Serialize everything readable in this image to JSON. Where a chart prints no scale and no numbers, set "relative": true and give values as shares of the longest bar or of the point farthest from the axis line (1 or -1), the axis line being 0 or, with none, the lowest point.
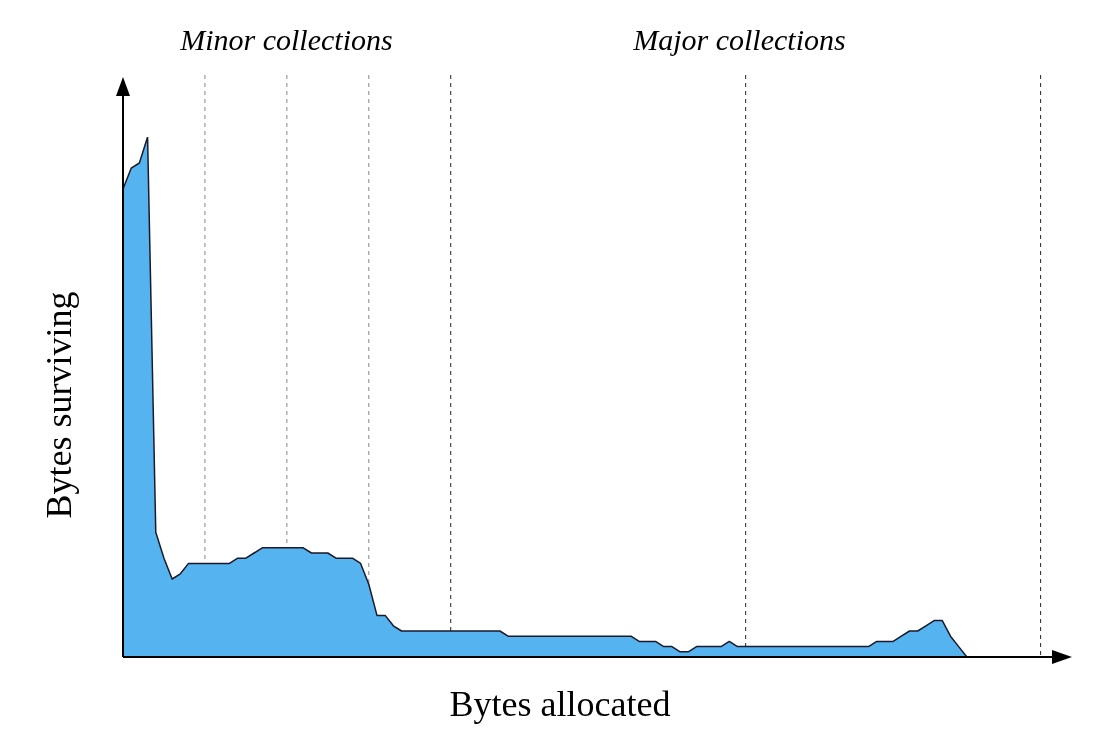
{
  "chart_data": {
    "type": "area",
    "relative": true,
    "xlabel": "Bytes allocated",
    "ylabel": "Bytes surviving",
    "annotations": [
      "Minor collections",
      "Major collections"
    ],
    "categories": [
      null,
      null,
      null,
      null,
      null,
      null,
      null,
      null,
      null,
      null,
      null,
      null,
      null,
      null,
      null,
      null,
      null,
      null,
      null,
      null,
      null,
      null,
      null,
      null,
      null,
      null,
      null,
      null,
      null,
      null,
      null,
      null,
      null,
      null,
      null,
      null,
      null,
      null,
      null,
      null,
      null,
      null,
      null,
      null,
      null,
      null,
      null,
      null,
      null,
      null,
      null,
      null,
      null,
      null,
      null,
      null,
      null,
      null,
      null,
      null,
      null,
      null,
      null,
      null,
      null,
      null,
      null,
      null,
      null,
      null,
      null,
      null,
      null,
      null,
      null,
      null,
      null,
      null,
      null,
      null,
      null,
      null,
      null,
      null,
      null,
      null,
      null,
      null,
      null,
      null,
      null,
      null,
      null,
      null,
      null,
      null,
      null,
      null,
      null,
      null,
      null,
      null,
      null,
      null,
      null,
      null,
      null,
      null,
      null,
      null,
      null,
      null,
      null,
      null,
      null
    ],
    "series": [
      {
        "color": "#55b4f0",
        "values": [
          0.9,
          0.94,
          0.95,
          1.0,
          0.24,
          0.19,
          0.15,
          0.16,
          0.18,
          0.18,
          0.18,
          0.18,
          0.18,
          0.18,
          0.19,
          0.19,
          0.2,
          0.21,
          0.21,
          0.21,
          0.21,
          0.21,
          0.21,
          0.2,
          0.2,
          0.2,
          0.19,
          0.19,
          0.19,
          0.18,
          0.14,
          0.08,
          0.08,
          0.06,
          0.05,
          0.05,
          0.05,
          0.05,
          0.05,
          0.05,
          0.05,
          0.05,
          0.05,
          0.05,
          0.05,
          0.05,
          0.05,
          0.04,
          0.04,
          0.04,
          0.04,
          0.04,
          0.04,
          0.04,
          0.04,
          0.04,
          0.04,
          0.04,
          0.04,
          0.04,
          0.04,
          0.04,
          0.04,
          0.03,
          0.03,
          0.03,
          0.02,
          0.02,
          0.01,
          0.01,
          0.02,
          0.02,
          0.02,
          0.02,
          0.03,
          0.02,
          0.02,
          0.02,
          0.02,
          0.02,
          0.02,
          0.02,
          0.02,
          0.02,
          0.02,
          0.02,
          0.02,
          0.02,
          0.02,
          0.02,
          0.02,
          0.02,
          0.03,
          0.03,
          0.03,
          0.04,
          0.05,
          0.05,
          0.06,
          0.07,
          0.07,
          0.04,
          0.02,
          0.0,
          0.0,
          0.0,
          null,
          null,
          null,
          null,
          null,
          null,
          null,
          null,
          null
        ]
      }
    ],
    "grid": "x",
    "legend": false
  }
}
